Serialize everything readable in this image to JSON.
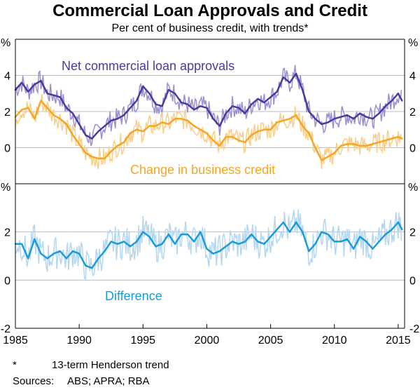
{
  "title": "Commercial Loan Approvals and Credit",
  "subtitle": "Per cent of business credit, with trends*",
  "footnote": {
    "marker": "*",
    "text": "13-term Henderson trend"
  },
  "sources": {
    "label": "Sources:",
    "text": "ABS; APRA; RBA"
  },
  "colors": {
    "approvals": "#4b3a9e",
    "approvals_raw": "#9b8fd1",
    "credit": "#f5a623",
    "credit_raw": "#f8cf8a",
    "difference": "#1b9bd7",
    "difference_raw": "#b3d7f2",
    "grid": "#bdbdbd"
  },
  "chart_data": [
    {
      "type": "line",
      "panel": "top",
      "unit_label": "%",
      "ylim": [
        -2,
        6
      ],
      "yticks": [
        0,
        2,
        4
      ],
      "xlim": [
        1985,
        2015.5
      ],
      "series": [
        {
          "name": "Net commercial loan approvals",
          "x": [
            1985.0,
            1985.5,
            1986.0,
            1986.5,
            1987.0,
            1987.5,
            1988.0,
            1988.5,
            1989.0,
            1989.5,
            1990.0,
            1990.5,
            1991.0,
            1991.5,
            1992.0,
            1992.5,
            1993.0,
            1993.5,
            1994.0,
            1994.5,
            1995.0,
            1995.5,
            1996.0,
            1996.5,
            1997.0,
            1997.5,
            1998.0,
            1998.5,
            1999.0,
            1999.5,
            2000.0,
            2000.5,
            2001.0,
            2001.5,
            2002.0,
            2002.5,
            2003.0,
            2003.5,
            2004.0,
            2004.5,
            2005.0,
            2005.5,
            2006.0,
            2006.5,
            2007.0,
            2007.5,
            2008.0,
            2008.5,
            2009.0,
            2009.5,
            2010.0,
            2010.5,
            2011.0,
            2011.5,
            2012.0,
            2012.5,
            2013.0,
            2013.5,
            2014.0,
            2014.5,
            2015.0,
            2015.3
          ],
          "values": [
            3.2,
            3.6,
            3.1,
            3.5,
            3.7,
            3.0,
            2.9,
            2.8,
            2.2,
            1.9,
            1.3,
            0.7,
            0.5,
            0.9,
            1.2,
            1.5,
            1.6,
            1.8,
            2.2,
            2.6,
            3.4,
            3.0,
            2.4,
            2.3,
            3.2,
            3.0,
            2.5,
            2.4,
            2.1,
            2.3,
            2.2,
            1.6,
            1.2,
            1.9,
            2.3,
            2.2,
            1.9,
            2.4,
            2.7,
            2.5,
            2.8,
            3.1,
            3.9,
            3.6,
            4.1,
            3.2,
            2.0,
            1.6,
            1.3,
            1.4,
            1.6,
            1.7,
            1.8,
            1.6,
            1.9,
            1.7,
            1.6,
            1.9,
            2.3,
            2.6,
            3.0,
            2.6
          ]
        },
        {
          "name": "Change in business credit",
          "x": [
            1985.0,
            1985.5,
            1986.0,
            1986.5,
            1987.0,
            1987.5,
            1988.0,
            1988.5,
            1989.0,
            1989.5,
            1990.0,
            1990.5,
            1991.0,
            1991.5,
            1992.0,
            1992.5,
            1993.0,
            1993.5,
            1994.0,
            1994.5,
            1995.0,
            1995.5,
            1996.0,
            1996.5,
            1997.0,
            1997.5,
            1998.0,
            1998.5,
            1999.0,
            1999.5,
            2000.0,
            2000.5,
            2001.0,
            2001.5,
            2002.0,
            2002.5,
            2003.0,
            2003.5,
            2004.0,
            2004.5,
            2005.0,
            2005.5,
            2006.0,
            2006.5,
            2007.0,
            2007.5,
            2008.0,
            2008.5,
            2009.0,
            2009.5,
            2010.0,
            2010.5,
            2011.0,
            2011.5,
            2012.0,
            2012.5,
            2013.0,
            2013.5,
            2014.0,
            2014.5,
            2015.0,
            2015.3
          ],
          "values": [
            1.7,
            2.1,
            2.2,
            1.6,
            2.6,
            2.2,
            1.8,
            1.6,
            1.3,
            0.7,
            0.2,
            -0.3,
            -0.5,
            -0.6,
            -0.6,
            -0.2,
            0.1,
            0.3,
            0.8,
            1.0,
            0.9,
            1.2,
            1.2,
            1.4,
            1.3,
            1.6,
            1.6,
            1.5,
            1.2,
            1.0,
            0.8,
            0.4,
            0.1,
            0.6,
            0.6,
            0.4,
            0.3,
            0.7,
            0.9,
            1.0,
            1.0,
            1.4,
            1.5,
            1.6,
            1.8,
            1.2,
            0.8,
            0.0,
            -0.7,
            -0.5,
            -0.3,
            0.1,
            0.2,
            0.2,
            0.1,
            0.1,
            0.2,
            0.3,
            0.4,
            0.5,
            0.6,
            0.5
          ]
        }
      ],
      "labels": [
        "Net commercial loan approvals",
        "Change in business credit"
      ]
    },
    {
      "type": "line",
      "panel": "bottom",
      "unit_label": "%",
      "ylim": [
        -2,
        4
      ],
      "yticks": [
        -2,
        0,
        2
      ],
      "xlim": [
        1985,
        2015.5
      ],
      "xticks": [
        1985,
        1990,
        1995,
        2000,
        2005,
        2010,
        2015
      ],
      "series": [
        {
          "name": "Difference",
          "x": [
            1985.0,
            1985.5,
            1986.0,
            1986.5,
            1987.0,
            1987.5,
            1988.0,
            1988.5,
            1989.0,
            1989.5,
            1990.0,
            1990.5,
            1991.0,
            1991.5,
            1992.0,
            1992.5,
            1993.0,
            1993.5,
            1994.0,
            1994.5,
            1995.0,
            1995.5,
            1996.0,
            1996.5,
            1997.0,
            1997.5,
            1998.0,
            1998.5,
            1999.0,
            1999.5,
            2000.0,
            2000.5,
            2001.0,
            2001.5,
            2002.0,
            2002.5,
            2003.0,
            2003.5,
            2004.0,
            2004.5,
            2005.0,
            2005.5,
            2006.0,
            2006.5,
            2007.0,
            2007.5,
            2008.0,
            2008.5,
            2009.0,
            2009.5,
            2010.0,
            2010.5,
            2011.0,
            2011.5,
            2012.0,
            2012.5,
            2013.0,
            2013.5,
            2014.0,
            2014.5,
            2015.0,
            2015.3
          ],
          "values": [
            1.5,
            1.5,
            0.9,
            1.7,
            1.1,
            0.9,
            1.1,
            1.2,
            0.9,
            1.2,
            1.1,
            0.6,
            0.5,
            0.9,
            1.2,
            1.6,
            1.5,
            1.6,
            1.4,
            1.6,
            2.0,
            1.8,
            1.4,
            1.5,
            1.9,
            1.5,
            1.9,
            1.9,
            1.6,
            2.0,
            1.3,
            1.1,
            1.2,
            1.4,
            1.6,
            1.5,
            1.6,
            1.9,
            1.6,
            1.5,
            1.8,
            2.1,
            2.4,
            2.0,
            2.4,
            2.0,
            1.2,
            1.5,
            2.0,
            1.9,
            1.6,
            1.6,
            1.7,
            1.3,
            1.8,
            1.6,
            1.3,
            1.6,
            1.9,
            2.1,
            2.4,
            2.1
          ]
        }
      ],
      "labels": [
        "Difference"
      ]
    }
  ]
}
